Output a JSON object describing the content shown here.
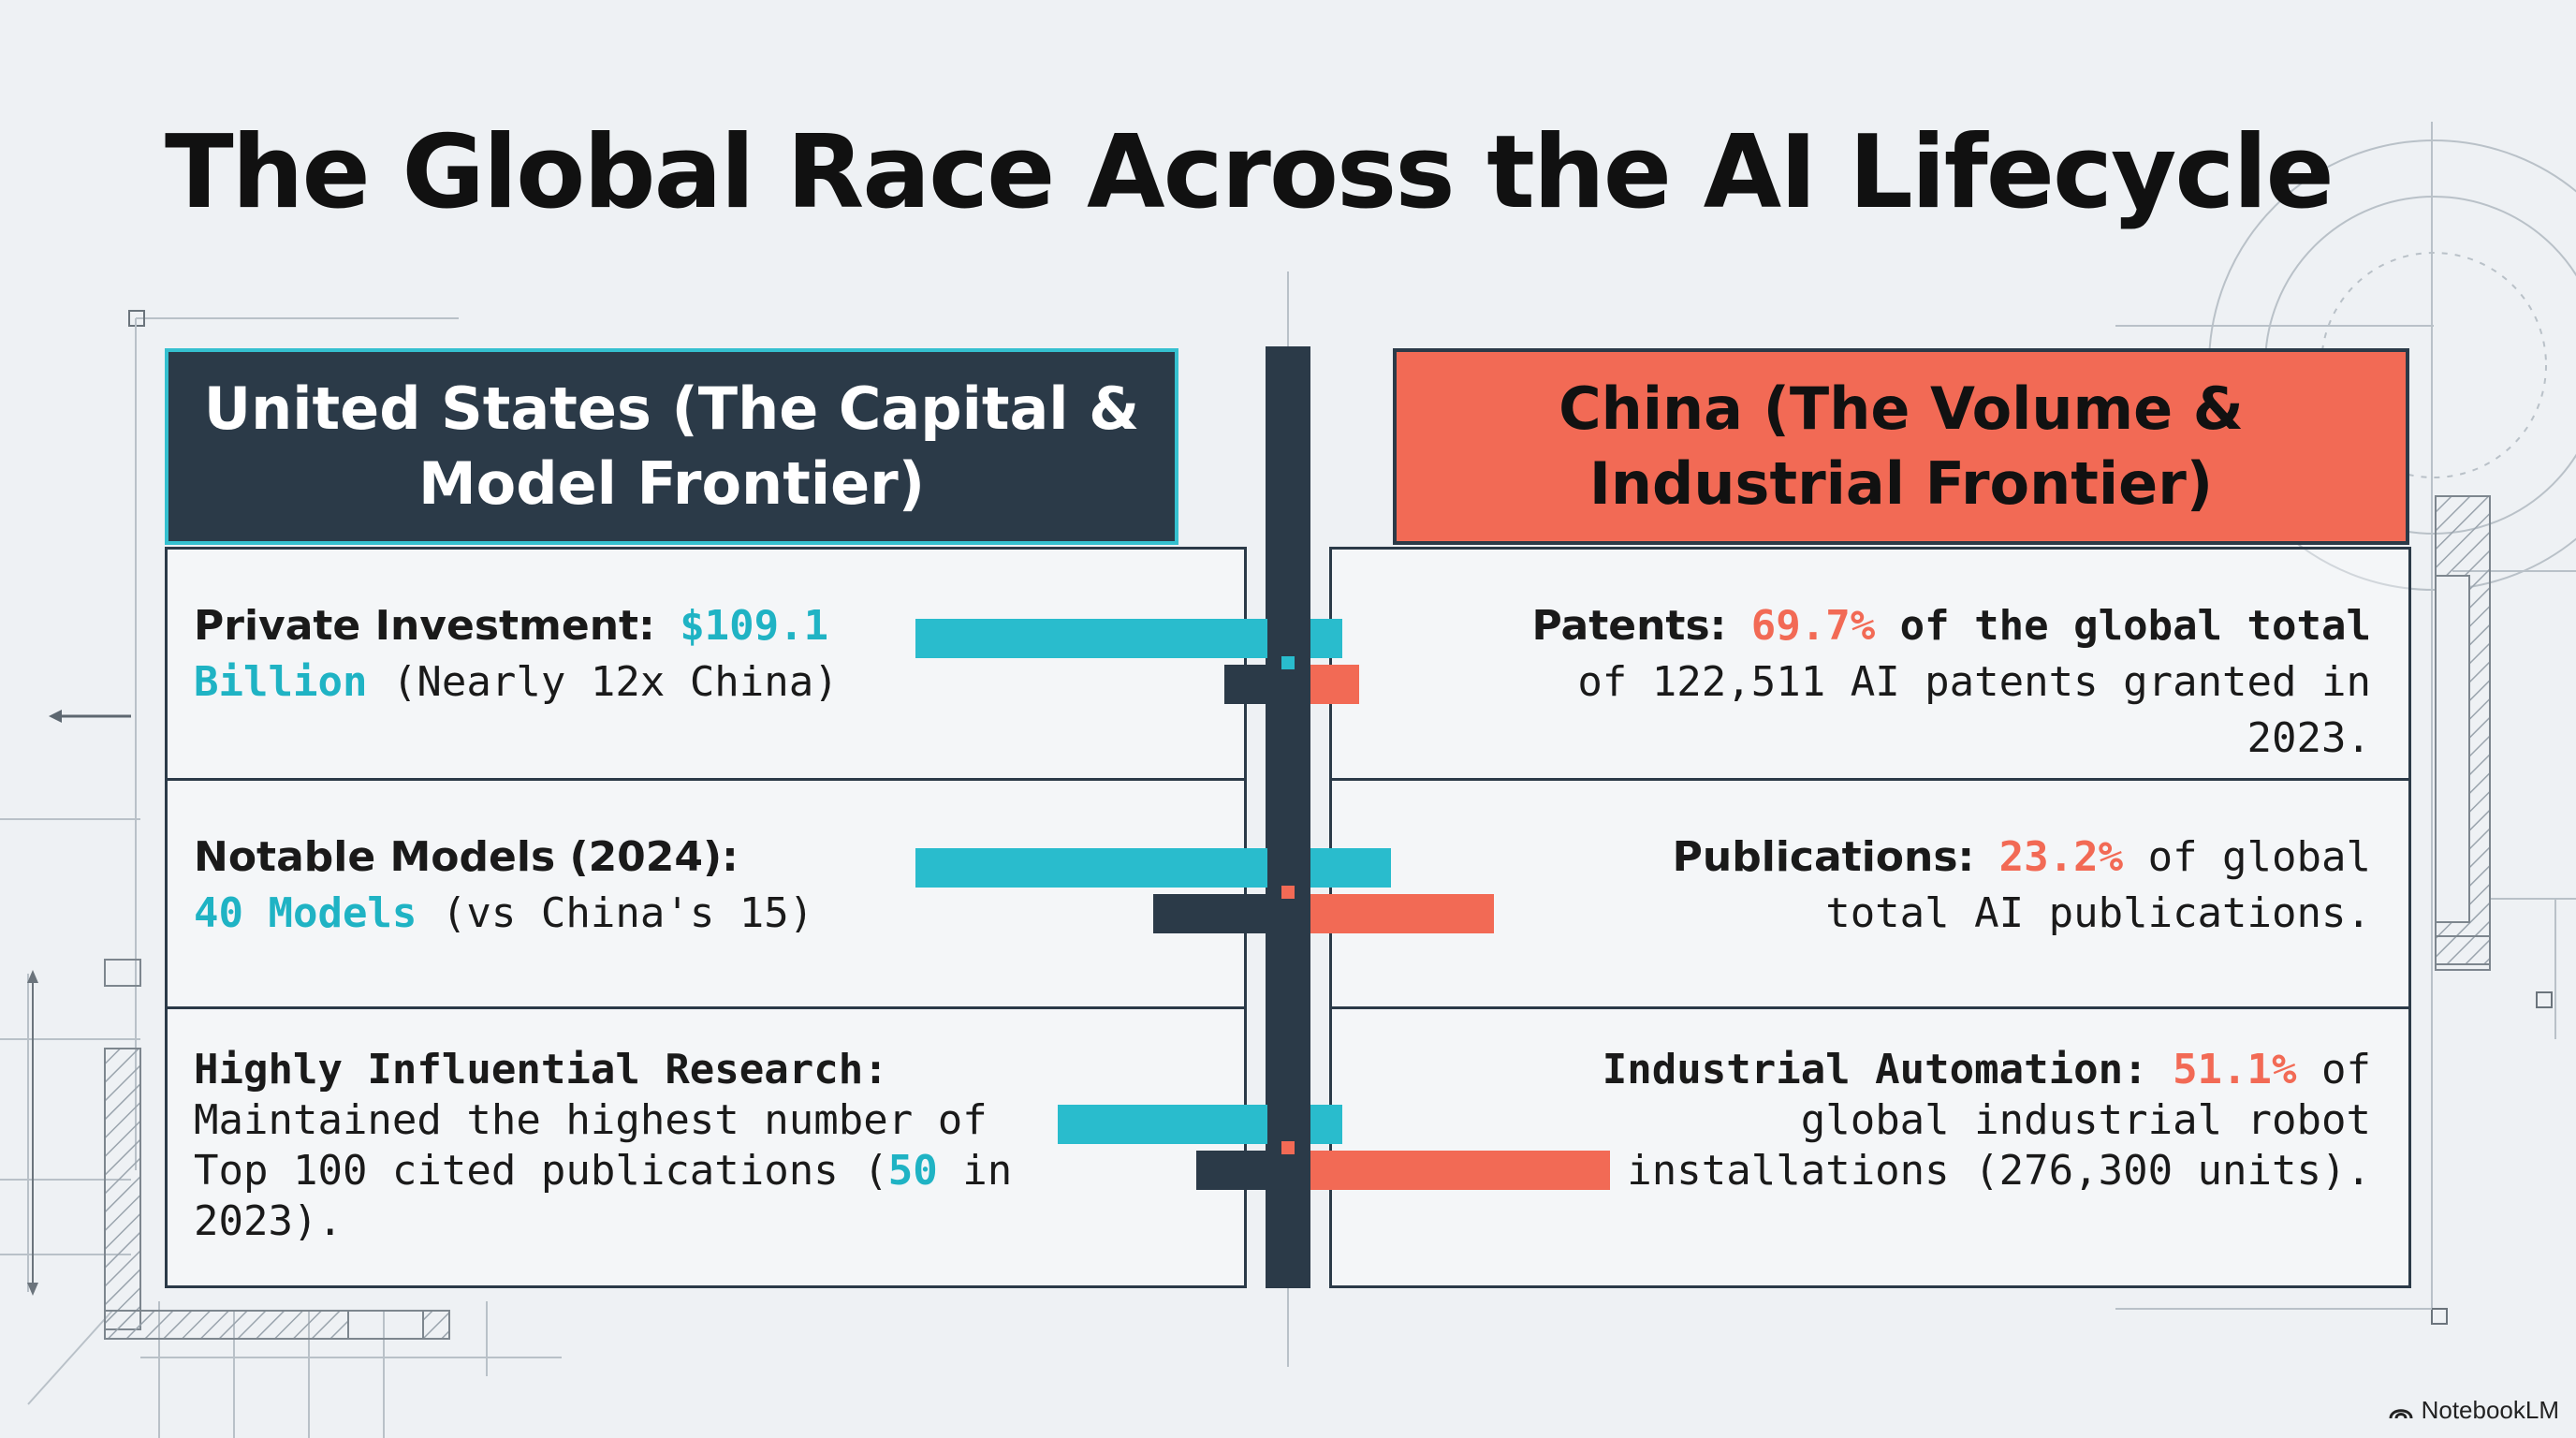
{
  "title": "The Global Race Across the AI Lifecycle",
  "colors": {
    "us_accent": "#29bccd",
    "china_accent": "#f26a55",
    "dark": "#2b3a48",
    "background": "#eef1f4"
  },
  "united_states": {
    "header": "United States (The Capital & Model Frontier)",
    "stats": [
      {
        "label": "Private Investment:",
        "value": "$109.1 Billion",
        "note": "(Nearly 12x China)"
      },
      {
        "label": "Notable Models (2024):",
        "value": "40 Models",
        "note": "(vs China's 15)"
      },
      {
        "label": "Highly Influential Research:",
        "text_before": "Maintained the highest number of Top 100 cited publications (",
        "value": "50",
        "text_after": " in 2023)."
      }
    ]
  },
  "china": {
    "header": "China (The Volume & Industrial Frontier)",
    "stats": [
      {
        "label": "Patents:",
        "value": "69.7%",
        "text_bold": " of the global total",
        "text_after": " of 122,511 AI patents granted in 2023."
      },
      {
        "label": "Publications:",
        "value": "23.2%",
        "text_after": " of global total AI publications."
      },
      {
        "label": "Industrial Automation:",
        "value": "51.1%",
        "text_after": " of global industrial robot installations (276,300 units)."
      }
    ]
  },
  "brand": "NotebookLM"
}
